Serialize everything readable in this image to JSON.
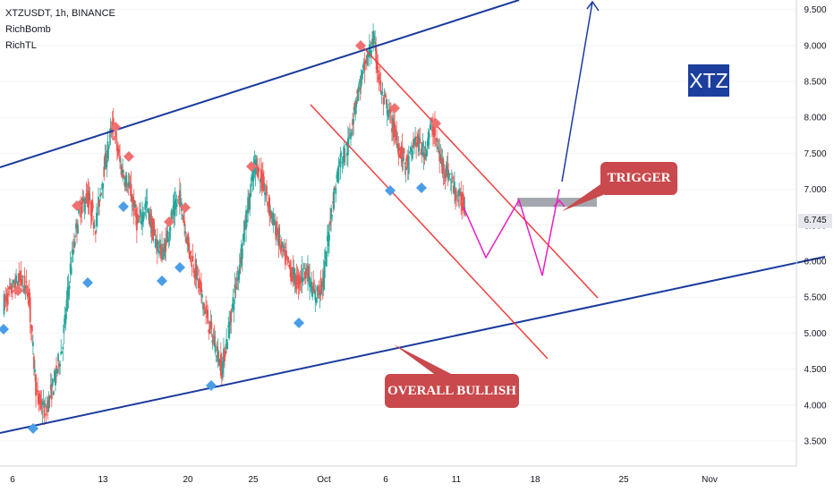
{
  "legend": {
    "symbol": "XTZUSDT, 1h, BINANCE",
    "indicator1": "RichBomb",
    "indicator2": "RichTL"
  },
  "annotations": {
    "coin": "XTZ",
    "trigger": "TRIGGER",
    "overall": "OVERALL BULLISH"
  },
  "current_price": "6.745",
  "colors": {
    "up": "#26a69a",
    "down": "#ef5350",
    "channel": "#1a3a9e",
    "downtrend": "#f23e3e",
    "projection": "#e91ec4",
    "sell_marker": "#f07070",
    "buy_marker": "#4a9ee8",
    "zone": "#9598a1",
    "label_bg": "#c9494c"
  },
  "chart_data": {
    "type": "line",
    "title": "XTZUSDT, 1h, BINANCE",
    "ylim": [
      3.4,
      9.85
    ],
    "y_ticks": [
      "3.500",
      "4.000",
      "4.500",
      "5.000",
      "5.500",
      "6.000",
      "6.500",
      "7.000",
      "7.500",
      "8.000",
      "8.500",
      "9.000",
      "9.500"
    ],
    "x_ticks": [
      "6",
      "13",
      "20",
      "25",
      "Oct",
      "6",
      "11",
      "18",
      "25",
      "Nov"
    ],
    "series": [
      {
        "name": "",
        "values": [
          5.4,
          5.6,
          5.75,
          5.55,
          4.1,
          3.9,
          4.3,
          4.8,
          5.9,
          6.7,
          6.9,
          6.5,
          7.3,
          7.9,
          7.3,
          7.0,
          6.5,
          6.8,
          6.3,
          6.1,
          6.6,
          6.9,
          6.2,
          5.8,
          5.3,
          4.9,
          4.5,
          5.2,
          5.9,
          6.7,
          7.4,
          7.0,
          6.6,
          6.2,
          5.9,
          5.7,
          5.9,
          5.5,
          5.7,
          6.7,
          7.4,
          7.6,
          8.3,
          8.7,
          9.1,
          8.3,
          8.0,
          7.6,
          7.3,
          7.7,
          7.5,
          7.9,
          7.4,
          7.2,
          6.9,
          6.75
        ]
      }
    ],
    "projection": [
      6.75,
      6.05,
      6.85,
      5.8,
      7.0
    ],
    "trigger_zone": 6.82,
    "trend_targets": [
      9.85
    ]
  }
}
